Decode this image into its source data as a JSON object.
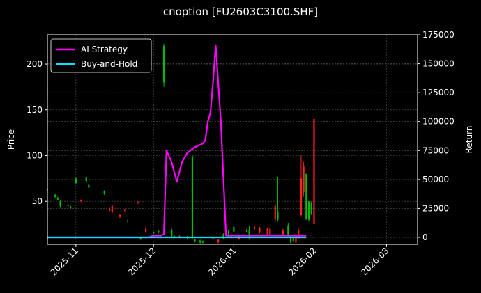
{
  "chart_data": {
    "type": "line",
    "title": "cnoption [FU2603C3100.SHF]",
    "ylabel": "Price",
    "ylabel_right": "Return",
    "grid": true,
    "legend_position": "top-left",
    "xlim": [
      "2025-10-21",
      "2026-03-13"
    ],
    "ylim": [
      3,
      232
    ],
    "ylim_right": [
      -6000,
      175000
    ],
    "x_ticks": [
      "2025-11",
      "2025-12",
      "2026-01",
      "2026-02",
      "2026-03"
    ],
    "y_ticks": [
      50,
      100,
      150,
      200
    ],
    "y_ticks_right": [
      0,
      25000,
      50000,
      75000,
      100000,
      125000,
      150000,
      175000
    ],
    "colors": {
      "up": "#00c000",
      "down": "#ff2020",
      "ai": "#ff00ff",
      "bh": "#00e5ff",
      "background": "#000000",
      "grid": "#555555"
    },
    "series": [
      {
        "name": "AI Strategy",
        "axis": "right",
        "points": [
          [
            "2025-10-21",
            0
          ],
          [
            "2025-11-29",
            0
          ],
          [
            "2025-12-01",
            1500
          ],
          [
            "2025-12-04",
            1500
          ],
          [
            "2025-12-05",
            3000
          ],
          [
            "2025-12-06",
            75000
          ],
          [
            "2025-12-08",
            65000
          ],
          [
            "2025-12-10",
            48000
          ],
          [
            "2025-12-12",
            65000
          ],
          [
            "2025-12-14",
            73000
          ],
          [
            "2025-12-17",
            78000
          ],
          [
            "2025-12-20",
            81000
          ],
          [
            "2025-12-21",
            84000
          ],
          [
            "2025-12-22",
            100000
          ],
          [
            "2025-12-23",
            108000
          ],
          [
            "2025-12-24",
            135000
          ],
          [
            "2025-12-25",
            166000
          ],
          [
            "2025-12-27",
            100000
          ],
          [
            "2025-12-29",
            1500
          ],
          [
            "2026-01-29",
            1500
          ]
        ]
      },
      {
        "name": "Buy-and-Hold",
        "axis": "right",
        "points": [
          [
            "2025-10-21",
            0
          ],
          [
            "2026-01-29",
            0
          ]
        ]
      }
    ],
    "candles": [
      {
        "date": "2025-10-21",
        "open": 62,
        "close": 63,
        "high": 64,
        "low": 61,
        "dir": "up"
      },
      {
        "date": "2025-10-24",
        "open": 57,
        "close": 55,
        "high": 58,
        "low": 54,
        "dir": "up"
      },
      {
        "date": "2025-10-25",
        "open": 52,
        "close": 54,
        "high": 55,
        "low": 51,
        "dir": "up"
      },
      {
        "date": "2025-10-26",
        "open": 50,
        "close": 45,
        "high": 51,
        "low": 43,
        "dir": "up"
      },
      {
        "date": "2025-10-29",
        "open": 45,
        "close": 46,
        "high": 47,
        "low": 44,
        "dir": "up"
      },
      {
        "date": "2025-10-30",
        "open": 43,
        "close": 44,
        "high": 45,
        "low": 42,
        "dir": "up"
      },
      {
        "date": "2025-11-01",
        "open": 75,
        "close": 70,
        "high": 76,
        "low": 69,
        "dir": "up"
      },
      {
        "date": "2025-11-03",
        "open": 50,
        "close": 51,
        "high": 52,
        "low": 49,
        "dir": "down"
      },
      {
        "date": "2025-11-05",
        "open": 76,
        "close": 72,
        "high": 77,
        "low": 70,
        "dir": "up"
      },
      {
        "date": "2025-11-06",
        "open": 68,
        "close": 65,
        "high": 68,
        "low": 64,
        "dir": "up"
      },
      {
        "date": "2025-11-12",
        "open": 61,
        "close": 58,
        "high": 62,
        "low": 57,
        "dir": "up"
      },
      {
        "date": "2025-11-14",
        "open": 40,
        "close": 42,
        "high": 43,
        "low": 39,
        "dir": "down"
      },
      {
        "date": "2025-11-15",
        "open": 45,
        "close": 38,
        "high": 46,
        "low": 37,
        "dir": "down"
      },
      {
        "date": "2025-11-18",
        "open": 33,
        "close": 35,
        "high": 36,
        "low": 32,
        "dir": "down"
      },
      {
        "date": "2025-11-20",
        "open": 39,
        "close": 41,
        "high": 42,
        "low": 38,
        "dir": "down"
      },
      {
        "date": "2025-11-21",
        "open": 28,
        "close": 29,
        "high": 30,
        "low": 27,
        "dir": "up"
      },
      {
        "date": "2025-11-25",
        "open": 49,
        "close": 48,
        "high": 50,
        "low": 47,
        "dir": "down"
      },
      {
        "date": "2025-11-26",
        "open": 9,
        "close": 10,
        "high": 11,
        "low": 8,
        "dir": "up"
      },
      {
        "date": "2025-11-28",
        "open": 20,
        "close": 16,
        "high": 23,
        "low": 15,
        "dir": "down"
      },
      {
        "date": "2025-12-01",
        "open": 15,
        "close": 16,
        "high": 17,
        "low": 14,
        "dir": "up"
      },
      {
        "date": "2025-12-03",
        "open": 16,
        "close": 17,
        "high": 18,
        "low": 15,
        "dir": "up"
      },
      {
        "date": "2025-12-05",
        "open": 180,
        "close": 220,
        "high": 222,
        "low": 175,
        "dir": "up"
      },
      {
        "date": "2025-12-08",
        "open": 18,
        "close": 12,
        "high": 20,
        "low": 10,
        "dir": "up"
      },
      {
        "date": "2025-12-09",
        "open": 12,
        "close": 11,
        "high": 13,
        "low": 10,
        "dir": "up"
      },
      {
        "date": "2025-12-11",
        "open": 12,
        "close": 11,
        "high": 13,
        "low": 10,
        "dir": "down"
      },
      {
        "date": "2025-12-14",
        "open": 11,
        "close": 10,
        "high": 12,
        "low": 9,
        "dir": "up"
      },
      {
        "date": "2025-12-16",
        "open": 99,
        "close": 10,
        "high": 100,
        "low": 9,
        "dir": "up"
      },
      {
        "date": "2025-12-17",
        "open": 8,
        "close": 6,
        "high": 9,
        "low": 5,
        "dir": "up"
      },
      {
        "date": "2025-12-19",
        "open": 7,
        "close": 5,
        "high": 8,
        "low": 4,
        "dir": "up"
      },
      {
        "date": "2025-12-20",
        "open": 6,
        "close": 5,
        "high": 7,
        "low": 4,
        "dir": "up"
      },
      {
        "date": "2025-12-24",
        "open": 9,
        "close": 10,
        "high": 11,
        "low": 8,
        "dir": "down"
      },
      {
        "date": "2025-12-26",
        "open": 8,
        "close": 5,
        "high": 9,
        "low": 4,
        "dir": "down"
      },
      {
        "date": "2025-12-28",
        "open": 10,
        "close": 14,
        "high": 15,
        "low": 9,
        "dir": "up"
      },
      {
        "date": "2025-12-30",
        "open": 18,
        "close": 12,
        "high": 19,
        "low": 11,
        "dir": "up"
      },
      {
        "date": "2026-01-01",
        "open": 22,
        "close": 17,
        "high": 23,
        "low": 16,
        "dir": "up"
      },
      {
        "date": "2026-01-03",
        "open": 12,
        "close": 9,
        "high": 13,
        "low": 8,
        "dir": "down"
      },
      {
        "date": "2026-01-06",
        "open": 17,
        "close": 19,
        "high": 20,
        "low": 16,
        "dir": "up"
      },
      {
        "date": "2026-01-07",
        "open": 10,
        "close": 19,
        "high": 23,
        "low": 9,
        "dir": "up"
      },
      {
        "date": "2026-01-09",
        "open": 22,
        "close": 20,
        "high": 23,
        "low": 19,
        "dir": "down"
      },
      {
        "date": "2026-01-11",
        "open": 21,
        "close": 16,
        "high": 22,
        "low": 15,
        "dir": "down"
      },
      {
        "date": "2026-01-14",
        "open": 20,
        "close": 14,
        "high": 21,
        "low": 13,
        "dir": "down"
      },
      {
        "date": "2026-01-15",
        "open": 13,
        "close": 20,
        "high": 23,
        "low": 12,
        "dir": "down"
      },
      {
        "date": "2026-01-17",
        "open": 45,
        "close": 30,
        "high": 48,
        "low": 27,
        "dir": "down"
      },
      {
        "date": "2026-01-18",
        "open": 30,
        "close": 38,
        "high": 76,
        "low": 28,
        "dir": "up"
      },
      {
        "date": "2026-01-20",
        "open": 18,
        "close": 14,
        "high": 20,
        "low": 12,
        "dir": "down"
      },
      {
        "date": "2026-01-22",
        "open": 23,
        "close": 12,
        "high": 26,
        "low": 11,
        "dir": "up"
      },
      {
        "date": "2026-01-23",
        "open": 10,
        "close": 5,
        "high": 12,
        "low": 4,
        "dir": "up"
      },
      {
        "date": "2026-01-24",
        "open": 10,
        "close": 6,
        "high": 12,
        "low": 5,
        "dir": "up"
      },
      {
        "date": "2026-01-25",
        "open": 14,
        "close": 5,
        "high": 16,
        "low": 4,
        "dir": "down"
      },
      {
        "date": "2026-01-26",
        "open": 10,
        "close": 18,
        "high": 20,
        "low": 9,
        "dir": "down"
      },
      {
        "date": "2026-01-27",
        "open": 75,
        "close": 35,
        "high": 100,
        "low": 33,
        "dir": "down"
      },
      {
        "date": "2026-01-28",
        "open": 88,
        "close": 60,
        "high": 93,
        "low": 55,
        "dir": "down"
      },
      {
        "date": "2026-01-29",
        "open": 80,
        "close": 30,
        "high": 80,
        "low": 30,
        "dir": "up"
      },
      {
        "date": "2026-01-30",
        "open": 50,
        "close": 30,
        "high": 50,
        "low": 28,
        "dir": "up"
      },
      {
        "date": "2026-01-31",
        "open": 48,
        "close": 36,
        "high": 50,
        "low": 35,
        "dir": "up"
      },
      {
        "date": "2026-02-01",
        "open": 140,
        "close": 25,
        "high": 143,
        "low": 22,
        "dir": "down"
      }
    ]
  }
}
